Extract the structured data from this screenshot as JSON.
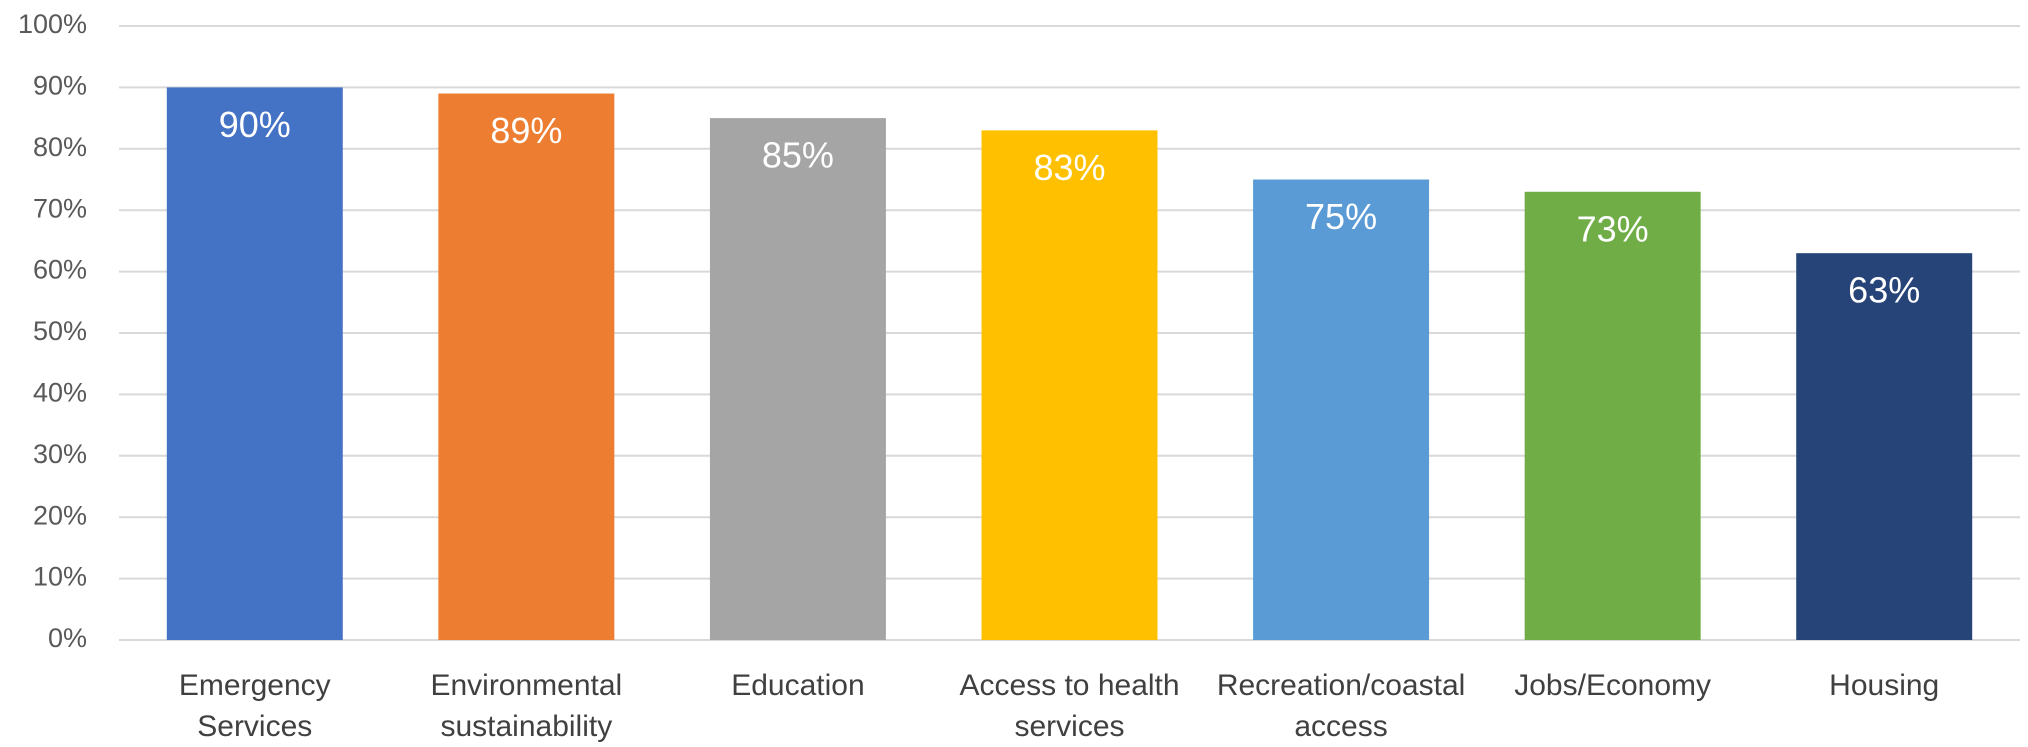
{
  "chart_data": {
    "type": "bar",
    "categories": [
      "Emergency Services",
      "Environmental sustainability",
      "Education",
      "Access to health services",
      "Recreation/coastal access",
      "Jobs/Economy",
      "Housing"
    ],
    "values": [
      90,
      89,
      85,
      83,
      75,
      73,
      63
    ],
    "value_labels": [
      "90%",
      "89%",
      "85%",
      "83%",
      "75%",
      "73%",
      "63%"
    ],
    "colors": [
      "#4472c4",
      "#ed7d31",
      "#a5a5a5",
      "#ffc000",
      "#5b9bd5",
      "#70ad47",
      "#264478"
    ],
    "ylim": [
      0,
      100
    ],
    "yticks": [
      {
        "value": 0,
        "label": "0%"
      },
      {
        "value": 10,
        "label": "10%"
      },
      {
        "value": 20,
        "label": "20%"
      },
      {
        "value": 30,
        "label": "30%"
      },
      {
        "value": 40,
        "label": "40%"
      },
      {
        "value": 50,
        "label": "50%"
      },
      {
        "value": 60,
        "label": "60%"
      },
      {
        "value": 70,
        "label": "70%"
      },
      {
        "value": 80,
        "label": "80%"
      },
      {
        "value": 90,
        "label": "90%"
      },
      {
        "value": 100,
        "label": "100%"
      }
    ],
    "grid": true
  }
}
